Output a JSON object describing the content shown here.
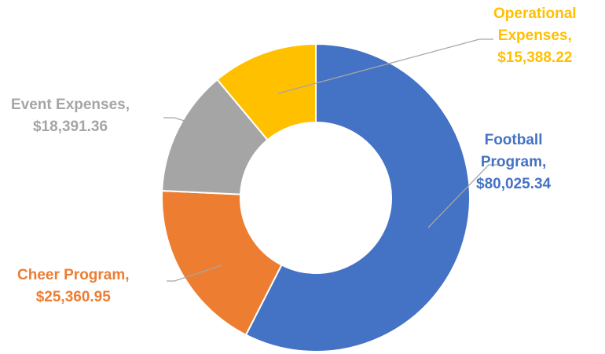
{
  "chart_data": {
    "type": "pie",
    "style": "donut",
    "currency": "$",
    "slices": [
      {
        "name": "Football Program",
        "value": 80025.34,
        "value_label": "$80,025.34",
        "color": "#4472C4",
        "label_lines": [
          "Football",
          "Program,",
          "$80,025.34"
        ]
      },
      {
        "name": "Cheer Program",
        "value": 25360.95,
        "value_label": "$25,360.95",
        "color": "#ED7D31",
        "label_lines": [
          "Cheer Program,",
          "$25,360.95"
        ]
      },
      {
        "name": "Event Expenses",
        "value": 18391.36,
        "value_label": "$18,391.36",
        "color": "#A5A5A5",
        "label_lines": [
          "Event Expenses,",
          "$18,391.36"
        ]
      },
      {
        "name": "Operational Expenses",
        "value": 15388.22,
        "value_label": "$15,388.22",
        "color": "#FFC000",
        "label_lines": [
          "Operational",
          "Expenses,",
          "$15,388.22"
        ]
      }
    ],
    "legend": "none",
    "data_labels": "outside with leader lines"
  }
}
